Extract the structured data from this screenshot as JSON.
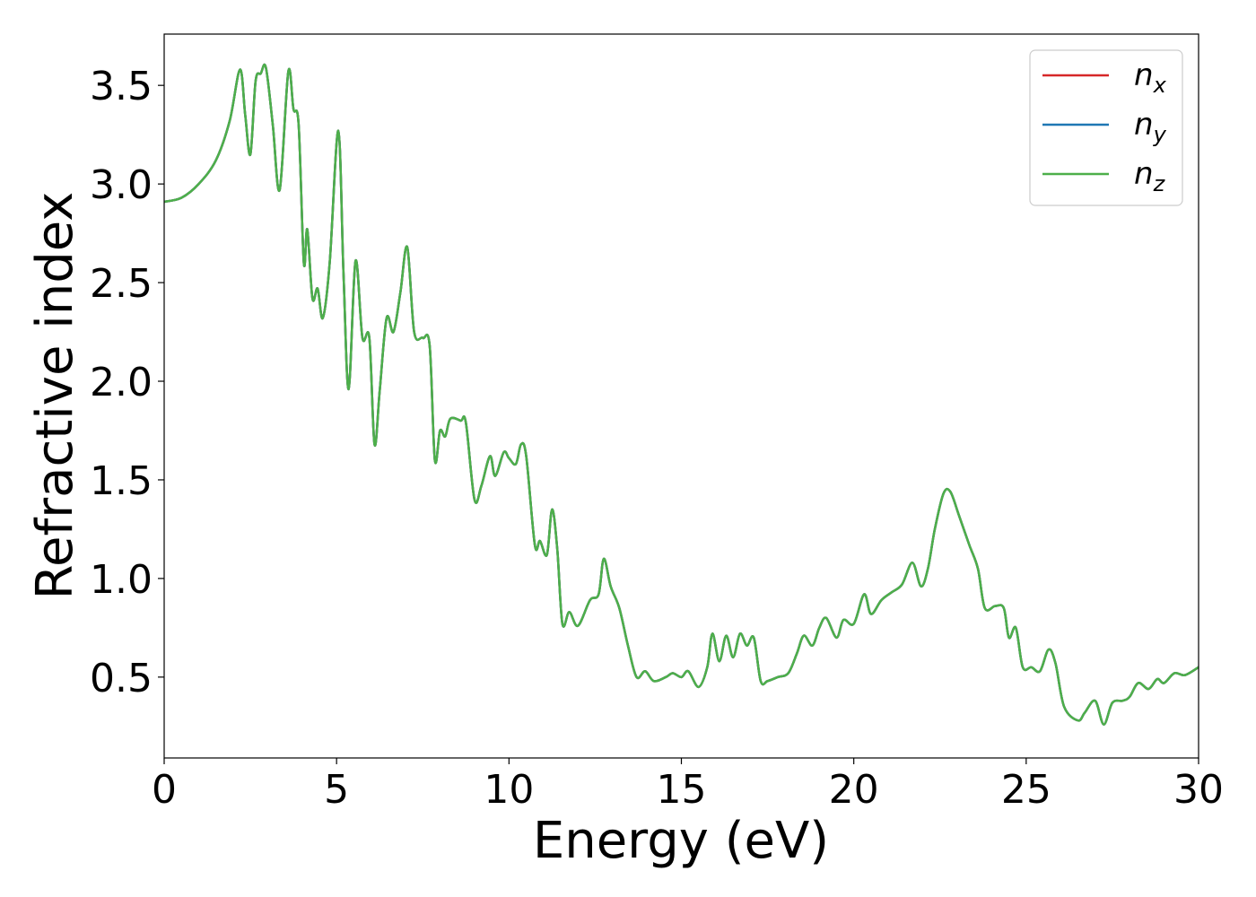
{
  "chart_data": {
    "type": "line",
    "xlabel": "Energy (eV)",
    "ylabel": "Refractive index",
    "xlim": [
      0,
      30
    ],
    "ylim": [
      0.09,
      3.76
    ],
    "xticks": [
      0,
      5,
      10,
      15,
      20,
      25,
      30
    ],
    "xtick_labels": [
      "0",
      "5",
      "10",
      "15",
      "20",
      "25",
      "30"
    ],
    "yticks": [
      0.5,
      1.0,
      1.5,
      2.0,
      2.5,
      3.0,
      3.5
    ],
    "ytick_labels": [
      "0.5",
      "1.0",
      "1.5",
      "2.0",
      "2.5",
      "3.0",
      "3.5"
    ],
    "grid": false,
    "legend_position": "top-right",
    "series": [
      {
        "name": "n_x",
        "legend_base": "n",
        "legend_sub": "x",
        "color": "#d62728",
        "x": [
          0,
          0.5,
          1.0,
          1.5,
          1.9,
          2.2,
          2.35,
          2.5,
          2.65,
          2.8,
          2.95,
          3.15,
          3.35,
          3.6,
          3.75,
          3.9,
          4.05,
          4.15,
          4.3,
          4.45,
          4.6,
          4.8,
          5.05,
          5.2,
          5.35,
          5.55,
          5.75,
          5.95,
          6.1,
          6.25,
          6.45,
          6.65,
          6.85,
          7.05,
          7.25,
          7.5,
          7.7,
          7.85,
          8.0,
          8.15,
          8.3,
          8.6,
          8.75,
          9.0,
          9.2,
          9.45,
          9.6,
          9.85,
          10.0,
          10.2,
          10.35,
          10.5,
          10.75,
          10.9,
          11.1,
          11.25,
          11.4,
          11.55,
          11.75,
          12.0,
          12.35,
          12.6,
          12.75,
          12.95,
          13.2,
          13.45,
          13.7,
          13.95,
          14.2,
          14.55,
          14.75,
          15.0,
          15.2,
          15.5,
          15.75,
          15.9,
          16.1,
          16.3,
          16.5,
          16.7,
          16.9,
          17.1,
          17.3,
          17.5,
          17.8,
          18.1,
          18.35,
          18.55,
          18.8,
          19.0,
          19.2,
          19.5,
          19.7,
          20.0,
          20.3,
          20.5,
          20.8,
          21.1,
          21.4,
          21.7,
          21.95,
          22.15,
          22.35,
          22.6,
          22.8,
          23.05,
          23.35,
          23.6,
          23.8,
          24.1,
          24.35,
          24.5,
          24.7,
          24.9,
          25.15,
          25.4,
          25.65,
          25.85,
          26.1,
          26.5,
          26.7,
          27.0,
          27.25,
          27.5,
          27.8,
          28.0,
          28.25,
          28.55,
          28.8,
          29.0,
          29.3,
          29.6,
          30.0
        ],
        "y": [
          2.91,
          2.93,
          3.0,
          3.12,
          3.32,
          3.58,
          3.35,
          3.15,
          3.52,
          3.56,
          3.59,
          3.3,
          2.97,
          3.57,
          3.38,
          3.3,
          2.6,
          2.77,
          2.42,
          2.47,
          2.32,
          2.6,
          3.27,
          2.55,
          1.96,
          2.61,
          2.22,
          2.22,
          1.68,
          1.95,
          2.32,
          2.25,
          2.45,
          2.68,
          2.25,
          2.22,
          2.18,
          1.6,
          1.75,
          1.72,
          1.81,
          1.8,
          1.79,
          1.4,
          1.47,
          1.62,
          1.52,
          1.64,
          1.61,
          1.58,
          1.68,
          1.62,
          1.17,
          1.19,
          1.12,
          1.35,
          1.15,
          0.77,
          0.83,
          0.76,
          0.89,
          0.92,
          1.1,
          0.96,
          0.85,
          0.66,
          0.5,
          0.53,
          0.48,
          0.5,
          0.52,
          0.5,
          0.53,
          0.45,
          0.55,
          0.72,
          0.58,
          0.71,
          0.6,
          0.72,
          0.66,
          0.7,
          0.48,
          0.48,
          0.5,
          0.52,
          0.62,
          0.71,
          0.66,
          0.75,
          0.8,
          0.7,
          0.79,
          0.77,
          0.92,
          0.82,
          0.89,
          0.93,
          0.97,
          1.08,
          0.96,
          1.05,
          1.25,
          1.43,
          1.44,
          1.32,
          1.17,
          1.05,
          0.85,
          0.86,
          0.85,
          0.7,
          0.75,
          0.55,
          0.55,
          0.53,
          0.64,
          0.57,
          0.35,
          0.28,
          0.32,
          0.38,
          0.26,
          0.37,
          0.38,
          0.4,
          0.47,
          0.44,
          0.49,
          0.47,
          0.52,
          0.51,
          0.55
        ]
      },
      {
        "name": "n_y",
        "legend_base": "n",
        "legend_sub": "y",
        "color": "#1f77b4",
        "x": [
          0,
          0.5,
          1.0,
          1.5,
          1.9,
          2.2,
          2.35,
          2.5,
          2.65,
          2.8,
          2.95,
          3.15,
          3.35,
          3.6,
          3.75,
          3.9,
          4.05,
          4.15,
          4.3,
          4.45,
          4.6,
          4.8,
          5.05,
          5.2,
          5.35,
          5.55,
          5.75,
          5.95,
          6.1,
          6.25,
          6.45,
          6.65,
          6.85,
          7.05,
          7.25,
          7.5,
          7.7,
          7.85,
          8.0,
          8.15,
          8.3,
          8.6,
          8.75,
          9.0,
          9.2,
          9.45,
          9.6,
          9.85,
          10.0,
          10.2,
          10.35,
          10.5,
          10.75,
          10.9,
          11.1,
          11.25,
          11.4,
          11.55,
          11.75,
          12.0,
          12.35,
          12.6,
          12.75,
          12.95,
          13.2,
          13.45,
          13.7,
          13.95,
          14.2,
          14.55,
          14.75,
          15.0,
          15.2,
          15.5,
          15.75,
          15.9,
          16.1,
          16.3,
          16.5,
          16.7,
          16.9,
          17.1,
          17.3,
          17.5,
          17.8,
          18.1,
          18.35,
          18.55,
          18.8,
          19.0,
          19.2,
          19.5,
          19.7,
          20.0,
          20.3,
          20.5,
          20.8,
          21.1,
          21.4,
          21.7,
          21.95,
          22.15,
          22.35,
          22.6,
          22.8,
          23.05,
          23.35,
          23.6,
          23.8,
          24.1,
          24.35,
          24.5,
          24.7,
          24.9,
          25.15,
          25.4,
          25.65,
          25.85,
          26.1,
          26.5,
          26.7,
          27.0,
          27.25,
          27.5,
          27.8,
          28.0,
          28.25,
          28.55,
          28.8,
          29.0,
          29.3,
          29.6,
          30.0
        ],
        "y": [
          2.91,
          2.93,
          3.0,
          3.12,
          3.32,
          3.58,
          3.35,
          3.15,
          3.52,
          3.56,
          3.59,
          3.3,
          2.97,
          3.57,
          3.38,
          3.3,
          2.6,
          2.77,
          2.42,
          2.47,
          2.32,
          2.6,
          3.27,
          2.55,
          1.96,
          2.61,
          2.22,
          2.22,
          1.68,
          1.95,
          2.32,
          2.25,
          2.45,
          2.68,
          2.25,
          2.22,
          2.18,
          1.6,
          1.75,
          1.72,
          1.81,
          1.8,
          1.79,
          1.4,
          1.47,
          1.62,
          1.52,
          1.64,
          1.61,
          1.58,
          1.68,
          1.62,
          1.17,
          1.19,
          1.12,
          1.35,
          1.15,
          0.77,
          0.83,
          0.76,
          0.89,
          0.92,
          1.1,
          0.96,
          0.85,
          0.66,
          0.5,
          0.53,
          0.48,
          0.5,
          0.52,
          0.5,
          0.53,
          0.45,
          0.55,
          0.72,
          0.58,
          0.71,
          0.6,
          0.72,
          0.66,
          0.7,
          0.48,
          0.48,
          0.5,
          0.52,
          0.62,
          0.71,
          0.66,
          0.75,
          0.8,
          0.7,
          0.79,
          0.77,
          0.92,
          0.82,
          0.89,
          0.93,
          0.97,
          1.08,
          0.96,
          1.05,
          1.25,
          1.43,
          1.44,
          1.32,
          1.17,
          1.05,
          0.85,
          0.86,
          0.85,
          0.7,
          0.75,
          0.55,
          0.55,
          0.53,
          0.64,
          0.57,
          0.35,
          0.28,
          0.32,
          0.38,
          0.26,
          0.37,
          0.38,
          0.4,
          0.47,
          0.44,
          0.49,
          0.47,
          0.52,
          0.51,
          0.55
        ]
      },
      {
        "name": "n_z",
        "legend_base": "n",
        "legend_sub": "z",
        "color": "#4daf4a",
        "x": [
          0,
          0.5,
          1.0,
          1.5,
          1.9,
          2.2,
          2.35,
          2.5,
          2.65,
          2.8,
          2.95,
          3.15,
          3.35,
          3.6,
          3.75,
          3.9,
          4.05,
          4.15,
          4.3,
          4.45,
          4.6,
          4.8,
          5.05,
          5.2,
          5.35,
          5.55,
          5.75,
          5.95,
          6.1,
          6.25,
          6.45,
          6.65,
          6.85,
          7.05,
          7.25,
          7.5,
          7.7,
          7.85,
          8.0,
          8.15,
          8.3,
          8.6,
          8.75,
          9.0,
          9.2,
          9.45,
          9.6,
          9.85,
          10.0,
          10.2,
          10.35,
          10.5,
          10.75,
          10.9,
          11.1,
          11.25,
          11.4,
          11.55,
          11.75,
          12.0,
          12.35,
          12.6,
          12.75,
          12.95,
          13.2,
          13.45,
          13.7,
          13.95,
          14.2,
          14.55,
          14.75,
          15.0,
          15.2,
          15.5,
          15.75,
          15.9,
          16.1,
          16.3,
          16.5,
          16.7,
          16.9,
          17.1,
          17.3,
          17.5,
          17.8,
          18.1,
          18.35,
          18.55,
          18.8,
          19.0,
          19.2,
          19.5,
          19.7,
          20.0,
          20.3,
          20.5,
          20.8,
          21.1,
          21.4,
          21.7,
          21.95,
          22.15,
          22.35,
          22.6,
          22.8,
          23.05,
          23.35,
          23.6,
          23.8,
          24.1,
          24.35,
          24.5,
          24.7,
          24.9,
          25.15,
          25.4,
          25.65,
          25.85,
          26.1,
          26.5,
          26.7,
          27.0,
          27.25,
          27.5,
          27.8,
          28.0,
          28.25,
          28.55,
          28.8,
          29.0,
          29.3,
          29.6,
          30.0
        ],
        "y": [
          2.91,
          2.93,
          3.0,
          3.12,
          3.32,
          3.58,
          3.35,
          3.15,
          3.52,
          3.56,
          3.59,
          3.3,
          2.97,
          3.57,
          3.38,
          3.3,
          2.6,
          2.77,
          2.42,
          2.47,
          2.32,
          2.6,
          3.27,
          2.55,
          1.96,
          2.61,
          2.22,
          2.22,
          1.68,
          1.95,
          2.32,
          2.25,
          2.45,
          2.68,
          2.25,
          2.22,
          2.18,
          1.6,
          1.75,
          1.72,
          1.81,
          1.8,
          1.79,
          1.4,
          1.47,
          1.62,
          1.52,
          1.64,
          1.61,
          1.58,
          1.68,
          1.62,
          1.17,
          1.19,
          1.12,
          1.35,
          1.15,
          0.77,
          0.83,
          0.76,
          0.89,
          0.92,
          1.1,
          0.96,
          0.85,
          0.66,
          0.5,
          0.53,
          0.48,
          0.5,
          0.52,
          0.5,
          0.53,
          0.45,
          0.55,
          0.72,
          0.58,
          0.71,
          0.6,
          0.72,
          0.66,
          0.7,
          0.48,
          0.48,
          0.5,
          0.52,
          0.62,
          0.71,
          0.66,
          0.75,
          0.8,
          0.7,
          0.79,
          0.77,
          0.92,
          0.82,
          0.89,
          0.93,
          0.97,
          1.08,
          0.96,
          1.05,
          1.25,
          1.43,
          1.44,
          1.32,
          1.17,
          1.05,
          0.85,
          0.86,
          0.85,
          0.7,
          0.75,
          0.55,
          0.55,
          0.53,
          0.64,
          0.57,
          0.35,
          0.28,
          0.32,
          0.38,
          0.26,
          0.37,
          0.38,
          0.4,
          0.47,
          0.44,
          0.49,
          0.47,
          0.52,
          0.51,
          0.55
        ]
      }
    ]
  }
}
